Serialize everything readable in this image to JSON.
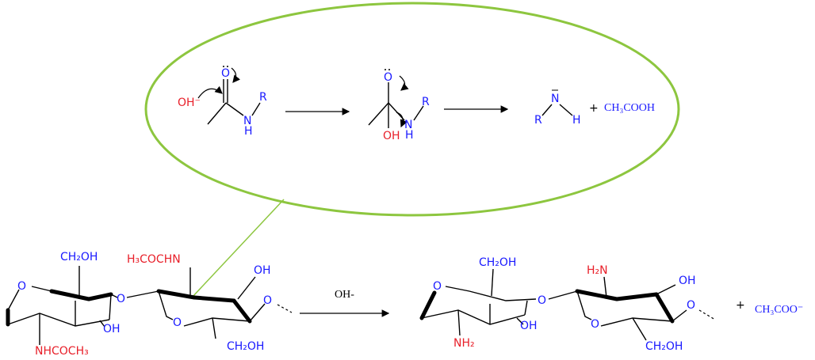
{
  "mechanism": {
    "hydroxide": "OH⁻",
    "carbonyl_o": "O",
    "amide_r": "R",
    "amide_n": "N",
    "amide_h": "H",
    "alkoxide_o": "O",
    "tetra_oh": "OH",
    "tetra_n": "N",
    "tetra_h": "H",
    "tetra_r": "R",
    "amine_r": "R",
    "amine_n": "N",
    "amine_h": "H",
    "plus": "+",
    "acid": "CH₃COOH"
  },
  "reactant": {
    "ring1_o": "O",
    "ring1_ch2oh": "CH₂OH",
    "ring1_oh": "OH",
    "ring1_nhac": "NHCOCH₃",
    "glycosidic_o": "O",
    "ring2_nhac": "H₃COCHN",
    "ring2_oh": "OH",
    "ring2_o": "O",
    "ring2_ch2oh": "CH₂OH",
    "chain_o": "O"
  },
  "reagent": "OH-",
  "product": {
    "ring1_o": "O",
    "ring1_ch2oh": "CH₂OH",
    "ring1_oh": "OH",
    "ring1_nh2": "NH₂",
    "glycosidic_o": "O",
    "ring2_nh2": "H₂N",
    "ring2_oh": "OH",
    "ring2_o": "O",
    "ring2_ch2oh": "CH₂OH",
    "chain_o": "O",
    "plus": "+",
    "acetate": "CH₃COO⁻"
  }
}
